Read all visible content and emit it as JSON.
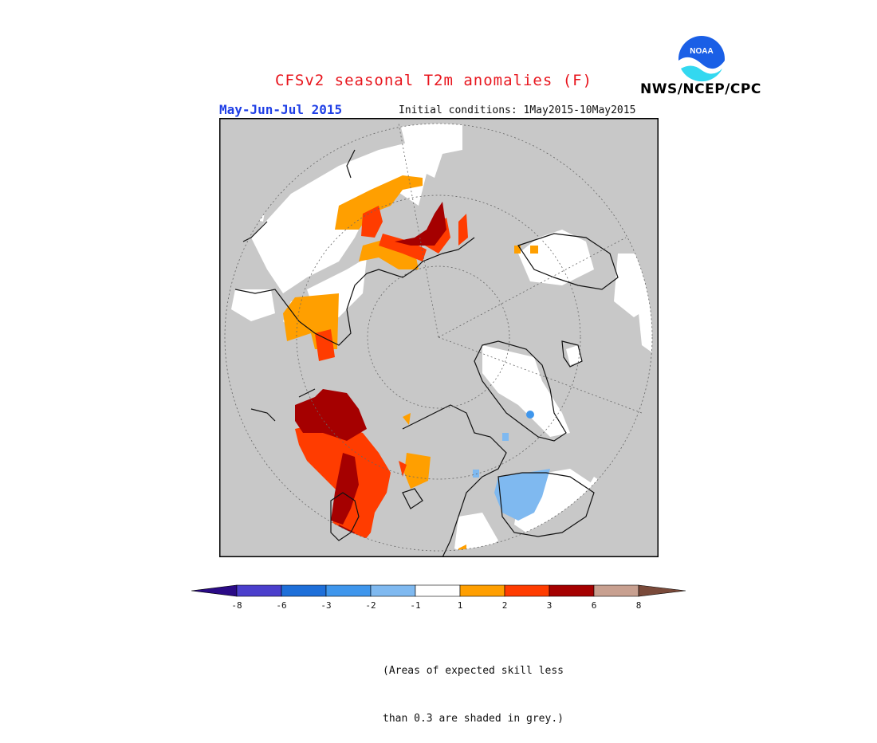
{
  "header": {
    "title": "CFSv2 seasonal T2m anomalies (F)",
    "season": "May-Jun-Jul 2015",
    "initial_conditions": "Initial conditions: 1May2015-10May2015",
    "agency": "NWS/NCEP/CPC",
    "logo_text": "NOAA"
  },
  "legend": {
    "ticks": [
      "-8",
      "-6",
      "-3",
      "-2",
      "-1",
      "1",
      "2",
      "3",
      "6",
      "8"
    ],
    "colors": {
      "below_-8": "#2a0a86",
      "-8_-6": "#4b3fcc",
      "-6_-3": "#1e6fd9",
      "-3_-2": "#3f96ec",
      "-2_-1": "#7fb9f0",
      "-1_1": "#ffffff",
      "1_2": "#ff9f00",
      "2_3": "#ff3c00",
      "3_6": "#a50000",
      "6_8": "#c8a090",
      "above_8": "#7a4a3a"
    }
  },
  "map": {
    "projection": "north-polar-stereographic",
    "skill_mask_color": "#c8c8c8",
    "ocean_color": "#c8c8c8"
  },
  "note": {
    "line1": "(Areas of expected skill less",
    "line2": "than 0.3 are shaded in grey.)"
  }
}
